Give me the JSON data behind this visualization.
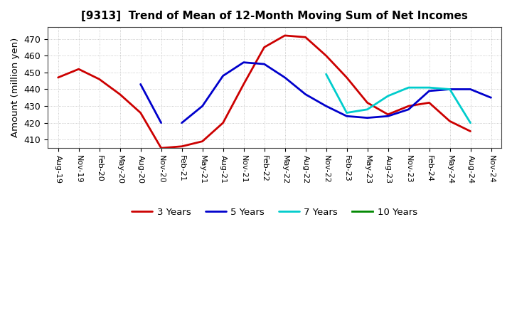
{
  "title": "[9313]  Trend of Mean of 12-Month Moving Sum of Net Incomes",
  "ylabel": "Amount (million yen)",
  "ylim": [
    405,
    477
  ],
  "yticks": [
    410,
    420,
    430,
    440,
    450,
    460,
    470
  ],
  "background_color": "#ffffff",
  "grid_color": "#bbbbbb",
  "x_labels": [
    "Aug-19",
    "Nov-19",
    "Feb-20",
    "May-20",
    "Aug-20",
    "Nov-20",
    "Feb-21",
    "May-21",
    "Aug-21",
    "Nov-21",
    "Feb-22",
    "May-22",
    "Aug-22",
    "Nov-22",
    "Feb-23",
    "May-23",
    "Aug-23",
    "Nov-23",
    "Feb-24",
    "May-24",
    "Aug-24",
    "Nov-24"
  ],
  "series": {
    "3 Years": {
      "color": "#cc0000",
      "linewidth": 2.0,
      "segments": [
        {
          "x": [
            0,
            1,
            2,
            3,
            4,
            5,
            6,
            7,
            8,
            9,
            10,
            11,
            12,
            13,
            14,
            15,
            16,
            17,
            18,
            19,
            20
          ],
          "y": [
            447,
            452,
            446,
            437,
            426,
            405,
            406,
            409,
            420,
            443,
            465,
            472,
            471,
            460,
            447,
            432,
            425,
            430,
            432,
            421,
            415
          ]
        }
      ]
    },
    "5 Years": {
      "color": "#0000cc",
      "linewidth": 2.0,
      "segments": [
        {
          "x": [
            4,
            5
          ],
          "y": [
            443,
            420
          ]
        },
        {
          "x": [
            6,
            7,
            8,
            9,
            10,
            11,
            12,
            13,
            14,
            15,
            16,
            17,
            18,
            19,
            20,
            21
          ],
          "y": [
            420,
            430,
            448,
            456,
            455,
            447,
            437,
            430,
            424,
            423,
            424,
            428,
            439,
            440,
            440,
            435
          ]
        }
      ]
    },
    "7 Years": {
      "color": "#00cccc",
      "linewidth": 2.0,
      "segments": [
        {
          "x": [
            13,
            14,
            15,
            16,
            17,
            18,
            19,
            20
          ],
          "y": [
            449,
            426,
            428,
            436,
            441,
            441,
            440,
            420
          ]
        }
      ]
    },
    "10 Years": {
      "color": "#008800",
      "linewidth": 2.0,
      "segments": []
    }
  },
  "legend_order": [
    "3 Years",
    "5 Years",
    "7 Years",
    "10 Years"
  ]
}
